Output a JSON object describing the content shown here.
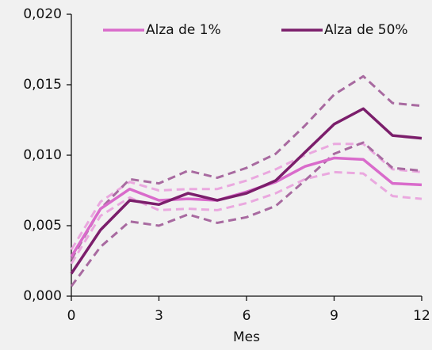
{
  "chart_data": {
    "type": "line",
    "x": [
      0,
      1,
      2,
      3,
      4,
      5,
      6,
      7,
      8,
      9,
      10,
      11,
      12
    ],
    "xlim": [
      0,
      12
    ],
    "xticks": [
      0,
      3,
      6,
      9,
      12
    ],
    "xlabel": "Mes",
    "ylim": [
      0,
      0.02
    ],
    "yticks": [
      {
        "value": 0,
        "label": "0,000"
      },
      {
        "value": 0.005,
        "label": "0,005"
      },
      {
        "value": 0.01,
        "label": "0,010"
      },
      {
        "value": 0.015,
        "label": "0,015"
      },
      {
        "value": 0.02,
        "label": "0,020"
      }
    ],
    "legend": "top",
    "series": [
      {
        "name": "Alza de 1%",
        "color": "#d96bcb",
        "band_color": "#eaa8df",
        "values": [
          0.0028,
          0.0062,
          0.0076,
          0.0068,
          0.0069,
          0.0068,
          0.0074,
          0.0081,
          0.0092,
          0.0098,
          0.0097,
          0.008,
          0.0079
        ],
        "upper": [
          0.0033,
          0.0067,
          0.0081,
          0.0075,
          0.0076,
          0.0076,
          0.0082,
          0.009,
          0.01,
          0.0108,
          0.0108,
          0.009,
          0.0088
        ],
        "lower": [
          0.0023,
          0.0057,
          0.007,
          0.0061,
          0.0062,
          0.0061,
          0.0066,
          0.0073,
          0.0083,
          0.0088,
          0.0087,
          0.0071,
          0.0069
        ]
      },
      {
        "name": "Alza de 50%",
        "color": "#7b1e6b",
        "band_color": "#a86aa0",
        "values": [
          0.0016,
          0.0047,
          0.0068,
          0.0065,
          0.0073,
          0.0068,
          0.0073,
          0.0082,
          0.0102,
          0.0122,
          0.0133,
          0.0114,
          0.0112
        ],
        "upper": [
          0.0026,
          0.0062,
          0.0083,
          0.008,
          0.0089,
          0.0084,
          0.0091,
          0.0101,
          0.0121,
          0.0143,
          0.0156,
          0.0137,
          0.0135
        ],
        "lower": [
          0.0007,
          0.0035,
          0.0053,
          0.005,
          0.0058,
          0.0052,
          0.0056,
          0.0064,
          0.0082,
          0.0101,
          0.0109,
          0.0091,
          0.0089
        ]
      }
    ]
  }
}
